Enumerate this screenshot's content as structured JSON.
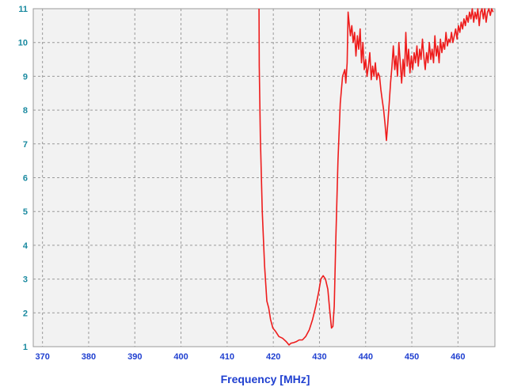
{
  "chart_data": {
    "type": "line",
    "title": "",
    "xlabel": "Frequency [MHz]",
    "ylabel": "",
    "xlim": [
      368,
      468
    ],
    "ylim": [
      1,
      11
    ],
    "xticks": [
      370,
      380,
      390,
      400,
      410,
      420,
      430,
      440,
      450,
      460
    ],
    "yticks": [
      1,
      2,
      3,
      4,
      5,
      6,
      7,
      8,
      9,
      10,
      11
    ],
    "grid": true,
    "background_color": "#f2f2f2",
    "line_color": "#ee1c1c",
    "axis_tick_color_y": "#1a8aa0",
    "axis_tick_color_x": "#1f3fd0",
    "series": [
      {
        "x": [
          416.9,
          416.95,
          417.2,
          417.6,
          418.1,
          418.6,
          419.0,
          419.4,
          419.9,
          420.5,
          421.2,
          422.0,
          422.8,
          423.4,
          423.8,
          424.4,
          425.0,
          425.6,
          426.3,
          427.0,
          427.8,
          428.5,
          429.2,
          429.8,
          430.3,
          430.8,
          431.3,
          431.8,
          432.2,
          432.6,
          432.9,
          433.2,
          433.5,
          434.0,
          434.5,
          435.0,
          435.5,
          435.7,
          436.0,
          436.2,
          436.4,
          436.7,
          437.0,
          437.3,
          437.6,
          437.9,
          438.2,
          438.5,
          438.8,
          439.1,
          439.4,
          439.7,
          440.0,
          440.3,
          440.6,
          440.9,
          441.2,
          441.5,
          441.8,
          442.1,
          442.4,
          442.7,
          443.0,
          443.3,
          443.6,
          443.9,
          444.2,
          444.5,
          444.8,
          445.1,
          445.4,
          445.7,
          446.0,
          446.3,
          446.6,
          446.9,
          447.2,
          447.5,
          447.8,
          448.1,
          448.4,
          448.7,
          449.0,
          449.3,
          449.6,
          449.9,
          450.2,
          450.5,
          450.8,
          451.1,
          451.4,
          451.7,
          452.0,
          452.3,
          452.6,
          452.9,
          453.2,
          453.5,
          453.8,
          454.1,
          454.4,
          454.7,
          455.0,
          455.3,
          455.6,
          455.9,
          456.2,
          456.5,
          456.8,
          457.1,
          457.4,
          457.7,
          458.0,
          458.3,
          458.6,
          458.9,
          459.2,
          459.5,
          459.8,
          460.1,
          460.4,
          460.7,
          461.0,
          461.3,
          461.6,
          461.9,
          462.2,
          462.5,
          462.8,
          463.1,
          463.4,
          463.7,
          464.0,
          464.3,
          464.6,
          464.9,
          465.2,
          465.5,
          465.8,
          466.1,
          466.4,
          466.7,
          467.0,
          467.3,
          467.6
        ],
        "y": [
          11.0,
          9.3,
          7.2,
          5.0,
          3.4,
          2.35,
          2.15,
          1.8,
          1.55,
          1.45,
          1.3,
          1.25,
          1.15,
          1.05,
          1.1,
          1.12,
          1.15,
          1.2,
          1.2,
          1.3,
          1.5,
          1.8,
          2.2,
          2.6,
          3.0,
          3.1,
          3.0,
          2.7,
          2.1,
          1.55,
          1.6,
          2.2,
          4.0,
          6.5,
          8.2,
          9.0,
          9.2,
          8.8,
          9.4,
          10.9,
          10.6,
          10.2,
          10.5,
          10.0,
          10.3,
          9.6,
          10.2,
          9.8,
          10.4,
          9.4,
          10.0,
          9.2,
          9.5,
          9.0,
          9.3,
          9.7,
          8.9,
          9.3,
          9.0,
          9.4,
          8.9,
          9.1,
          9.0,
          8.6,
          8.3,
          8.0,
          7.6,
          7.1,
          7.6,
          8.2,
          8.8,
          9.3,
          9.9,
          9.2,
          9.6,
          9.0,
          10.0,
          9.4,
          8.8,
          9.5,
          9.0,
          10.3,
          9.3,
          9.8,
          9.1,
          9.6,
          9.2,
          9.7,
          9.4,
          9.9,
          9.3,
          9.8,
          9.5,
          10.1,
          9.6,
          9.2,
          9.7,
          9.4,
          10.0,
          9.5,
          9.8,
          9.4,
          10.2,
          9.6,
          9.9,
          9.4,
          10.1,
          9.7,
          10.0,
          9.8,
          10.3,
          9.9,
          10.1,
          10.0,
          10.3,
          10.0,
          10.2,
          10.4,
          10.1,
          10.5,
          10.3,
          10.6,
          10.4,
          10.7,
          10.5,
          10.8,
          10.6,
          10.9,
          10.7,
          11.0,
          10.6,
          10.9,
          10.7,
          11.0,
          10.5,
          10.9,
          11.0,
          10.7,
          11.0,
          10.6,
          10.9,
          11.0,
          10.8,
          11.0,
          10.9
        ]
      }
    ]
  }
}
